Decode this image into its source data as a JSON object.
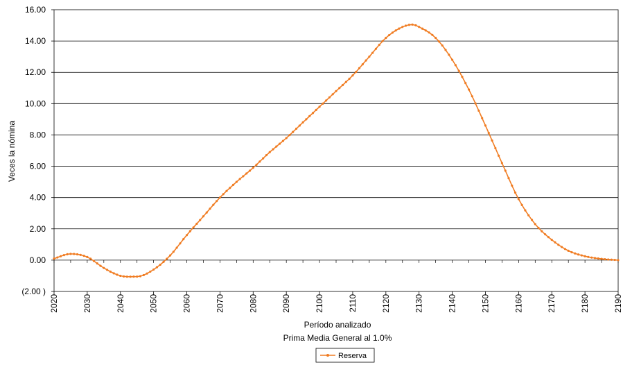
{
  "chart_data": {
    "type": "line",
    "title": "",
    "xlabel": "Período analizado",
    "subtitle": "Prima Media General al 1.0%",
    "ylabel": "Veces la nómina",
    "xlim": [
      2020,
      2190
    ],
    "ylim": [
      -2,
      16
    ],
    "grid": true,
    "legend": "bottom-center",
    "x_ticks": [
      "2020",
      "2030",
      "2040",
      "2050",
      "2060",
      "2070",
      "2080",
      "2090",
      "2100",
      "2110",
      "2120",
      "2130",
      "2140",
      "2150",
      "2160",
      "2170",
      "2180",
      "2190"
    ],
    "y_ticks": [
      {
        "value": 16,
        "label": "16.00"
      },
      {
        "value": 14,
        "label": "14.00"
      },
      {
        "value": 12,
        "label": "12.00"
      },
      {
        "value": 10,
        "label": "10.00"
      },
      {
        "value": 8,
        "label": "8.00"
      },
      {
        "value": 6,
        "label": "6.00"
      },
      {
        "value": 4,
        "label": "4.00"
      },
      {
        "value": 2,
        "label": "2.00"
      },
      {
        "value": 0,
        "label": "0.00"
      },
      {
        "value": -2,
        "label": "(2.00 )"
      }
    ],
    "negative_label_color": "#ff0000",
    "series": [
      {
        "name": "Reserva",
        "color": "#f07c22",
        "x": [
          2020,
          2025,
          2030,
          2035,
          2040,
          2045,
          2050,
          2055,
          2060,
          2065,
          2070,
          2075,
          2080,
          2085,
          2090,
          2095,
          2100,
          2105,
          2110,
          2115,
          2120,
          2125,
          2128,
          2130,
          2135,
          2140,
          2145,
          2150,
          2155,
          2160,
          2165,
          2170,
          2175,
          2180,
          2185,
          2190
        ],
        "values": [
          0.1,
          0.4,
          0.2,
          -0.5,
          -1.0,
          -1.05,
          -0.6,
          0.3,
          1.6,
          2.8,
          4.0,
          5.0,
          5.9,
          6.9,
          7.8,
          8.8,
          9.8,
          10.8,
          11.8,
          13.0,
          14.2,
          14.9,
          15.05,
          14.9,
          14.2,
          12.8,
          10.9,
          8.6,
          6.2,
          3.9,
          2.3,
          1.3,
          0.6,
          0.25,
          0.08,
          0.0
        ]
      }
    ]
  }
}
